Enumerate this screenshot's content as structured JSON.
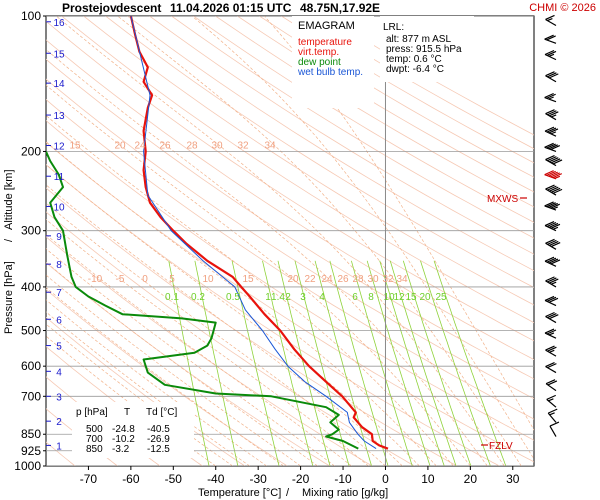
{
  "header": {
    "station": "Prostejov",
    "mode": "descent",
    "datetime": "11.04.2026 01:15 UTC",
    "coords": "48.75N,17.92E",
    "credit": "CHMI © 2026"
  },
  "legend": {
    "title": "EMAGRAM",
    "items": [
      {
        "label": "temperature",
        "color": "#e8130c"
      },
      {
        "label": "virt.temp.",
        "color": "#e8130c"
      },
      {
        "label": "dew point",
        "color": "#0a8a0a"
      },
      {
        "label": "wet bulb temp.",
        "color": "#1a56d6"
      }
    ]
  },
  "lrl": {
    "title": "LRL:",
    "alt": "alt: 877 m ASL",
    "press": "press: 915.5 hPa",
    "temp": "temp: 0.6 °C",
    "dwpt": "dwpt: -6.4 °C",
    "alt_color": "#1a1acc",
    "temp_color": "#e8130c",
    "dwpt_color": "#0a8a0a"
  },
  "markers": {
    "mxws": "MXWS",
    "fzlv": "FZLV",
    "color": "#cc0000"
  },
  "table": {
    "header": [
      "p [hPa]",
      "T",
      "Td [°C]"
    ],
    "rows": [
      [
        "500",
        "-24.8",
        "-40.5"
      ],
      [
        "700",
        "-10.2",
        "-26.9"
      ],
      [
        "850",
        "-3.2",
        "-12.5"
      ]
    ]
  },
  "axes": {
    "ylabel_pressure": "Pressure [hPa]",
    "ylabel_sep": "/",
    "ylabel_altitude": "Altitude [km]",
    "xlabel_temp": "Temperature [°C]",
    "xlabel_sep": "/",
    "xlabel_mr": "Mixing ratio [g/kg]",
    "mr_color": "#7ccf2c",
    "altitude_color": "#1a1acc"
  },
  "chart_data": {
    "type": "line",
    "title": "EMAGRAM",
    "xlabel": "Temperature [°C]",
    "ylabel": "Pressure [hPa]",
    "xlim": [
      -80,
      35
    ],
    "ylim": [
      1000,
      100
    ],
    "y_log": true,
    "grid": true,
    "pressure_ticks": [
      100,
      200,
      300,
      400,
      500,
      600,
      700,
      850,
      925,
      1000
    ],
    "temperature_ticks": [
      -70,
      -60,
      -50,
      -40,
      -30,
      -20,
      -10,
      0,
      10,
      20,
      30
    ],
    "altitude_km_ticks": [
      {
        "km": 1,
        "p": 900
      },
      {
        "km": 2,
        "p": 795
      },
      {
        "km": 3,
        "p": 700
      },
      {
        "km": 4,
        "p": 616
      },
      {
        "km": 5,
        "p": 540
      },
      {
        "km": 6,
        "p": 472
      },
      {
        "km": 7,
        "p": 411
      },
      {
        "km": 8,
        "p": 356
      },
      {
        "km": 9,
        "p": 308
      },
      {
        "km": 10,
        "p": 265
      },
      {
        "km": 11,
        "p": 227
      },
      {
        "km": 12,
        "p": 194
      },
      {
        "km": 13,
        "p": 166
      },
      {
        "km": 14,
        "p": 141
      },
      {
        "km": 15,
        "p": 121
      },
      {
        "km": 16,
        "p": 103
      }
    ],
    "mixing_ratio_labels": {
      "upper_p": 200,
      "upper": [
        "15",
        "20",
        "24",
        "26",
        "28",
        "30",
        "32",
        "34"
      ],
      "middle_p": 400,
      "middle_dry": [
        "-10",
        "-5",
        "0",
        "5",
        "10",
        "15",
        "20",
        "22",
        "24",
        "26",
        "28",
        "30",
        "32",
        "34"
      ],
      "middle_mr": [
        "0.1",
        "0.2",
        "0.5",
        "1",
        "1.4",
        "2",
        "3",
        "4",
        "6",
        "8",
        "10",
        "12",
        "15",
        "20",
        "25"
      ]
    },
    "series": [
      {
        "name": "temperature",
        "color": "#e8130c",
        "points": [
          {
            "p": 915,
            "t": 0.6
          },
          {
            "p": 900,
            "t": -1.5
          },
          {
            "p": 880,
            "t": -3.0
          },
          {
            "p": 850,
            "t": -3.2
          },
          {
            "p": 820,
            "t": -5.5
          },
          {
            "p": 780,
            "t": -7.5
          },
          {
            "p": 760,
            "t": -7.0
          },
          {
            "p": 700,
            "t": -10.2
          },
          {
            "p": 650,
            "t": -14.0
          },
          {
            "p": 600,
            "t": -18.0
          },
          {
            "p": 550,
            "t": -21.5
          },
          {
            "p": 500,
            "t": -24.8
          },
          {
            "p": 460,
            "t": -28.5
          },
          {
            "p": 420,
            "t": -32.0
          },
          {
            "p": 400,
            "t": -34.0
          },
          {
            "p": 380,
            "t": -36.0
          },
          {
            "p": 350,
            "t": -42.0
          },
          {
            "p": 320,
            "t": -47.0
          },
          {
            "p": 300,
            "t": -50.0
          },
          {
            "p": 280,
            "t": -53.0
          },
          {
            "p": 260,
            "t": -55.5
          },
          {
            "p": 240,
            "t": -56.5
          },
          {
            "p": 220,
            "t": -57.0
          },
          {
            "p": 200,
            "t": -56.5
          },
          {
            "p": 180,
            "t": -57.0
          },
          {
            "p": 160,
            "t": -56.0
          },
          {
            "p": 150,
            "t": -55.0
          },
          {
            "p": 140,
            "t": -57.0
          },
          {
            "p": 130,
            "t": -56.0
          },
          {
            "p": 120,
            "t": -58.0
          },
          {
            "p": 110,
            "t": -59.0
          },
          {
            "p": 100,
            "t": -60.0
          }
        ]
      },
      {
        "name": "dew point",
        "color": "#0a8a0a",
        "points": [
          {
            "p": 915,
            "t": -6.4
          },
          {
            "p": 880,
            "t": -10.0
          },
          {
            "p": 860,
            "t": -14.0
          },
          {
            "p": 850,
            "t": -12.5
          },
          {
            "p": 830,
            "t": -11.0
          },
          {
            "p": 800,
            "t": -13.0
          },
          {
            "p": 770,
            "t": -11.0
          },
          {
            "p": 740,
            "t": -14.0
          },
          {
            "p": 700,
            "t": -26.9
          },
          {
            "p": 690,
            "t": -40.0
          },
          {
            "p": 660,
            "t": -52.0
          },
          {
            "p": 620,
            "t": -56.0
          },
          {
            "p": 580,
            "t": -57.0
          },
          {
            "p": 560,
            "t": -45.0
          },
          {
            "p": 540,
            "t": -42.0
          },
          {
            "p": 520,
            "t": -41.0
          },
          {
            "p": 500,
            "t": -40.5
          },
          {
            "p": 480,
            "t": -40.0
          },
          {
            "p": 470,
            "t": -48.0
          },
          {
            "p": 460,
            "t": -62.0
          },
          {
            "p": 440,
            "t": -66.0
          },
          {
            "p": 420,
            "t": -70.0
          },
          {
            "p": 400,
            "t": -73.0
          },
          {
            "p": 380,
            "t": -74.0
          },
          {
            "p": 340,
            "t": -75.0
          },
          {
            "p": 300,
            "t": -76.0
          },
          {
            "p": 280,
            "t": -78.0
          },
          {
            "p": 260,
            "t": -79.0
          },
          {
            "p": 240,
            "t": -76.0
          },
          {
            "p": 225,
            "t": -77.0
          },
          {
            "p": 210,
            "t": -79.0
          },
          {
            "p": 200,
            "t": -80.0
          }
        ]
      },
      {
        "name": "wet bulb temp.",
        "color": "#1a56d6",
        "points": [
          {
            "p": 915,
            "t": -2.2
          },
          {
            "p": 880,
            "t": -5.0
          },
          {
            "p": 850,
            "t": -6.5
          },
          {
            "p": 800,
            "t": -8.5
          },
          {
            "p": 760,
            "t": -9.0
          },
          {
            "p": 700,
            "t": -14.0
          },
          {
            "p": 650,
            "t": -19.0
          },
          {
            "p": 600,
            "t": -23.0
          },
          {
            "p": 550,
            "t": -26.0
          },
          {
            "p": 500,
            "t": -29.0
          },
          {
            "p": 450,
            "t": -33.0
          },
          {
            "p": 400,
            "t": -35.5
          },
          {
            "p": 350,
            "t": -43.0
          },
          {
            "p": 300,
            "t": -50.5
          },
          {
            "p": 250,
            "t": -56.0
          },
          {
            "p": 200,
            "t": -57.0
          },
          {
            "p": 150,
            "t": -55.5
          },
          {
            "p": 100,
            "t": -60.0
          }
        ]
      }
    ],
    "wind_barbs": {
      "color": "#000000",
      "highlight_color": "#cc0000",
      "levels": [
        {
          "p": 105,
          "dir": 300,
          "kt": 15
        },
        {
          "p": 115,
          "dir": 290,
          "kt": 20
        },
        {
          "p": 125,
          "dir": 295,
          "kt": 25
        },
        {
          "p": 140,
          "dir": 300,
          "kt": 30
        },
        {
          "p": 155,
          "dir": 290,
          "kt": 25
        },
        {
          "p": 170,
          "dir": 300,
          "kt": 35
        },
        {
          "p": 185,
          "dir": 295,
          "kt": 35
        },
        {
          "p": 200,
          "dir": 290,
          "kt": 40
        },
        {
          "p": 215,
          "dir": 300,
          "kt": 50
        },
        {
          "p": 230,
          "dir": 290,
          "kt": 55
        },
        {
          "p": 250,
          "dir": 300,
          "kt": 50
        },
        {
          "p": 270,
          "dir": 290,
          "kt": 45
        },
        {
          "p": 300,
          "dir": 295,
          "kt": 45
        },
        {
          "p": 330,
          "dir": 300,
          "kt": 40
        },
        {
          "p": 360,
          "dir": 295,
          "kt": 40
        },
        {
          "p": 400,
          "dir": 300,
          "kt": 35
        },
        {
          "p": 440,
          "dir": 295,
          "kt": 30
        },
        {
          "p": 480,
          "dir": 300,
          "kt": 30
        },
        {
          "p": 520,
          "dir": 295,
          "kt": 25
        },
        {
          "p": 570,
          "dir": 300,
          "kt": 25
        },
        {
          "p": 620,
          "dir": 300,
          "kt": 20
        },
        {
          "p": 680,
          "dir": 305,
          "kt": 20
        },
        {
          "p": 740,
          "dir": 310,
          "kt": 15
        },
        {
          "p": 800,
          "dir": 320,
          "kt": 15
        },
        {
          "p": 860,
          "dir": 330,
          "kt": 10
        }
      ],
      "max_wind_p": 235
    }
  }
}
